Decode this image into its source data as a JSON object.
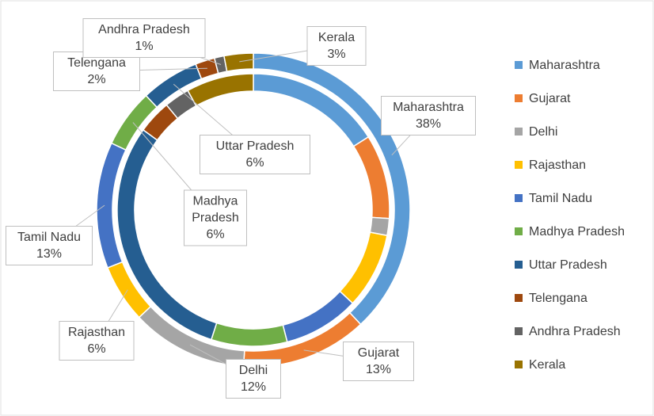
{
  "chart_data": {
    "type": "doughnut",
    "categories": [
      "Maharashtra",
      "Gujarat",
      "Delhi",
      "Rajasthan",
      "Tamil Nadu",
      "Madhya Pradesh",
      "Uttar Pradesh",
      "Telengana",
      "Andhra Pradesh",
      "Kerala"
    ],
    "colors": [
      "#5b9bd5",
      "#ed7d31",
      "#a5a5a5",
      "#ffc000",
      "#4472c4",
      "#70ad47",
      "#255e91",
      "#9e480e",
      "#636363",
      "#997300"
    ],
    "rings": [
      {
        "values": [
          38,
          13,
          12,
          6,
          13,
          6,
          6,
          2,
          1,
          3
        ],
        "value_labels": [
          "38%",
          "13%",
          "12%",
          "6%",
          "13%",
          "6%",
          "6%",
          "2%",
          "1%",
          "3%"
        ]
      },
      {
        "values": [
          16,
          10,
          2,
          9,
          9,
          9,
          30,
          4,
          3,
          8
        ]
      }
    ],
    "legend": "right"
  }
}
